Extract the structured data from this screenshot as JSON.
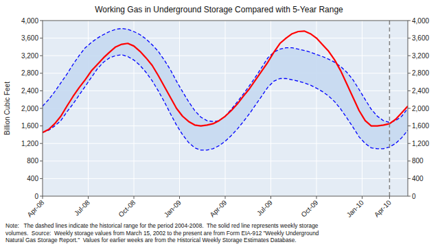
{
  "chart_data": {
    "type": "line",
    "title": "Working Gas in Underground Storage Compared with 5-Year Range",
    "y_label": "Billion Cubic Feet",
    "note": "Note:   The dashed lines indicate the historical range for the period 2004-2008.  The solid red line represents weekly storage\nvolumes.  Source:  Weekly storage values from March 15, 2002 to the present are from Form EIA-912 \"Weekly Underground\nNatural Gas Storage Report.\"  Values for earlier weeks are from the Historical Weekly Storage Estimates Database.",
    "x": [
      0,
      1,
      2,
      3,
      4,
      5,
      6,
      7,
      8,
      9,
      10,
      11,
      12,
      13,
      14,
      15,
      16,
      17,
      18,
      19,
      20,
      21,
      22,
      23,
      24,
      25,
      26,
      27,
      28,
      29,
      30,
      31,
      32,
      33,
      34,
      35,
      36,
      37,
      38,
      39,
      40,
      41,
      42,
      43,
      44,
      45,
      46,
      47,
      48,
      49,
      50,
      51,
      52,
      53,
      54,
      55,
      56,
      57,
      58,
      59,
      60
    ],
    "xlim": [
      0,
      60
    ],
    "xticks": [
      {
        "value": 0,
        "label": "Apr-08"
      },
      {
        "value": 7.5,
        "label": "Jul-08"
      },
      {
        "value": 15,
        "label": "Oct-08"
      },
      {
        "value": 22.5,
        "label": "Jan-09"
      },
      {
        "value": 30,
        "label": "Apr-09"
      },
      {
        "value": 37.5,
        "label": "Jul-09"
      },
      {
        "value": 45,
        "label": "Oct-09"
      },
      {
        "value": 52.5,
        "label": "Jan-10"
      },
      {
        "value": 57,
        "label": "Apr-10"
      }
    ],
    "ylim": [
      0,
      4000
    ],
    "yticks": [
      0,
      400,
      800,
      {
        "value": 1200,
        "label": "1,200"
      },
      {
        "value": 1600,
        "label": "1,600"
      },
      {
        "value": 2000,
        "label": "2,000"
      },
      {
        "value": 2400,
        "label": "2,400"
      },
      {
        "value": 2800,
        "label": "2,800"
      },
      {
        "value": 3200,
        "label": "3,200"
      },
      {
        "value": 3600,
        "label": "3,600"
      },
      {
        "value": 4000,
        "label": "4,000"
      }
    ],
    "y2lim": [
      0,
      4000
    ],
    "y2ticks": [
      0,
      400,
      800,
      {
        "value": 1200,
        "label": "1,200"
      },
      {
        "value": 1600,
        "label": "1,600"
      },
      {
        "value": 2000,
        "label": "2,000"
      },
      {
        "value": 2400,
        "label": "2,400"
      },
      {
        "value": 2800,
        "label": "2,800"
      },
      {
        "value": 3200,
        "label": "3,200"
      },
      {
        "value": 3600,
        "label": "3,600"
      },
      {
        "value": 4000,
        "label": "4,000"
      }
    ],
    "grid": true,
    "vline_x": 57,
    "series": [
      {
        "color": "blue",
        "line_style": "dashed",
        "values": [
          2050,
          2200,
          2380,
          2580,
          2780,
          3000,
          3200,
          3380,
          3500,
          3600,
          3680,
          3750,
          3800,
          3820,
          3800,
          3750,
          3680,
          3580,
          3450,
          3300,
          3100,
          2880,
          2620,
          2380,
          2150,
          1950,
          1800,
          1720,
          1700,
          1720,
          1820,
          1980,
          2150,
          2330,
          2520,
          2720,
          2930,
          3150,
          3280,
          3350,
          3380,
          3380,
          3350,
          3320,
          3280,
          3230,
          3180,
          3120,
          3050,
          2950,
          2820,
          2650,
          2430,
          2200,
          1980,
          1820,
          1720,
          1680,
          1720,
          1820,
          2000
        ]
      },
      {
        "color": "blue",
        "line_style": "dashed",
        "values": [
          1450,
          1500,
          1600,
          1720,
          1920,
          2100,
          2300,
          2500,
          2700,
          2900,
          3050,
          3150,
          3200,
          3220,
          3180,
          3100,
          2980,
          2820,
          2630,
          2400,
          2150,
          1880,
          1620,
          1400,
          1220,
          1100,
          1050,
          1050,
          1080,
          1150,
          1250,
          1380,
          1530,
          1700,
          1880,
          2080,
          2280,
          2480,
          2620,
          2680,
          2680,
          2650,
          2620,
          2580,
          2530,
          2460,
          2380,
          2280,
          2150,
          1980,
          1780,
          1570,
          1350,
          1200,
          1100,
          1080,
          1080,
          1120,
          1200,
          1330,
          1500
        ]
      },
      {
        "color": "red",
        "line_style": "solid",
        "values": [
          1450,
          1520,
          1650,
          1820,
          2050,
          2270,
          2470,
          2650,
          2850,
          3000,
          3150,
          3280,
          3400,
          3460,
          3480,
          3420,
          3300,
          3150,
          2980,
          2750,
          2500,
          2250,
          2000,
          1820,
          1700,
          1620,
          1600,
          1620,
          1650,
          1720,
          1820,
          1950,
          2100,
          2280,
          2450,
          2650,
          2850,
          3050,
          3280,
          3480,
          3600,
          3700,
          3750,
          3760,
          3700,
          3600,
          3450,
          3300,
          3100,
          2850,
          2550,
          2250,
          1950,
          1720,
          1600,
          1600,
          1620,
          1650,
          1750,
          1900,
          2050
        ]
      }
    ]
  }
}
